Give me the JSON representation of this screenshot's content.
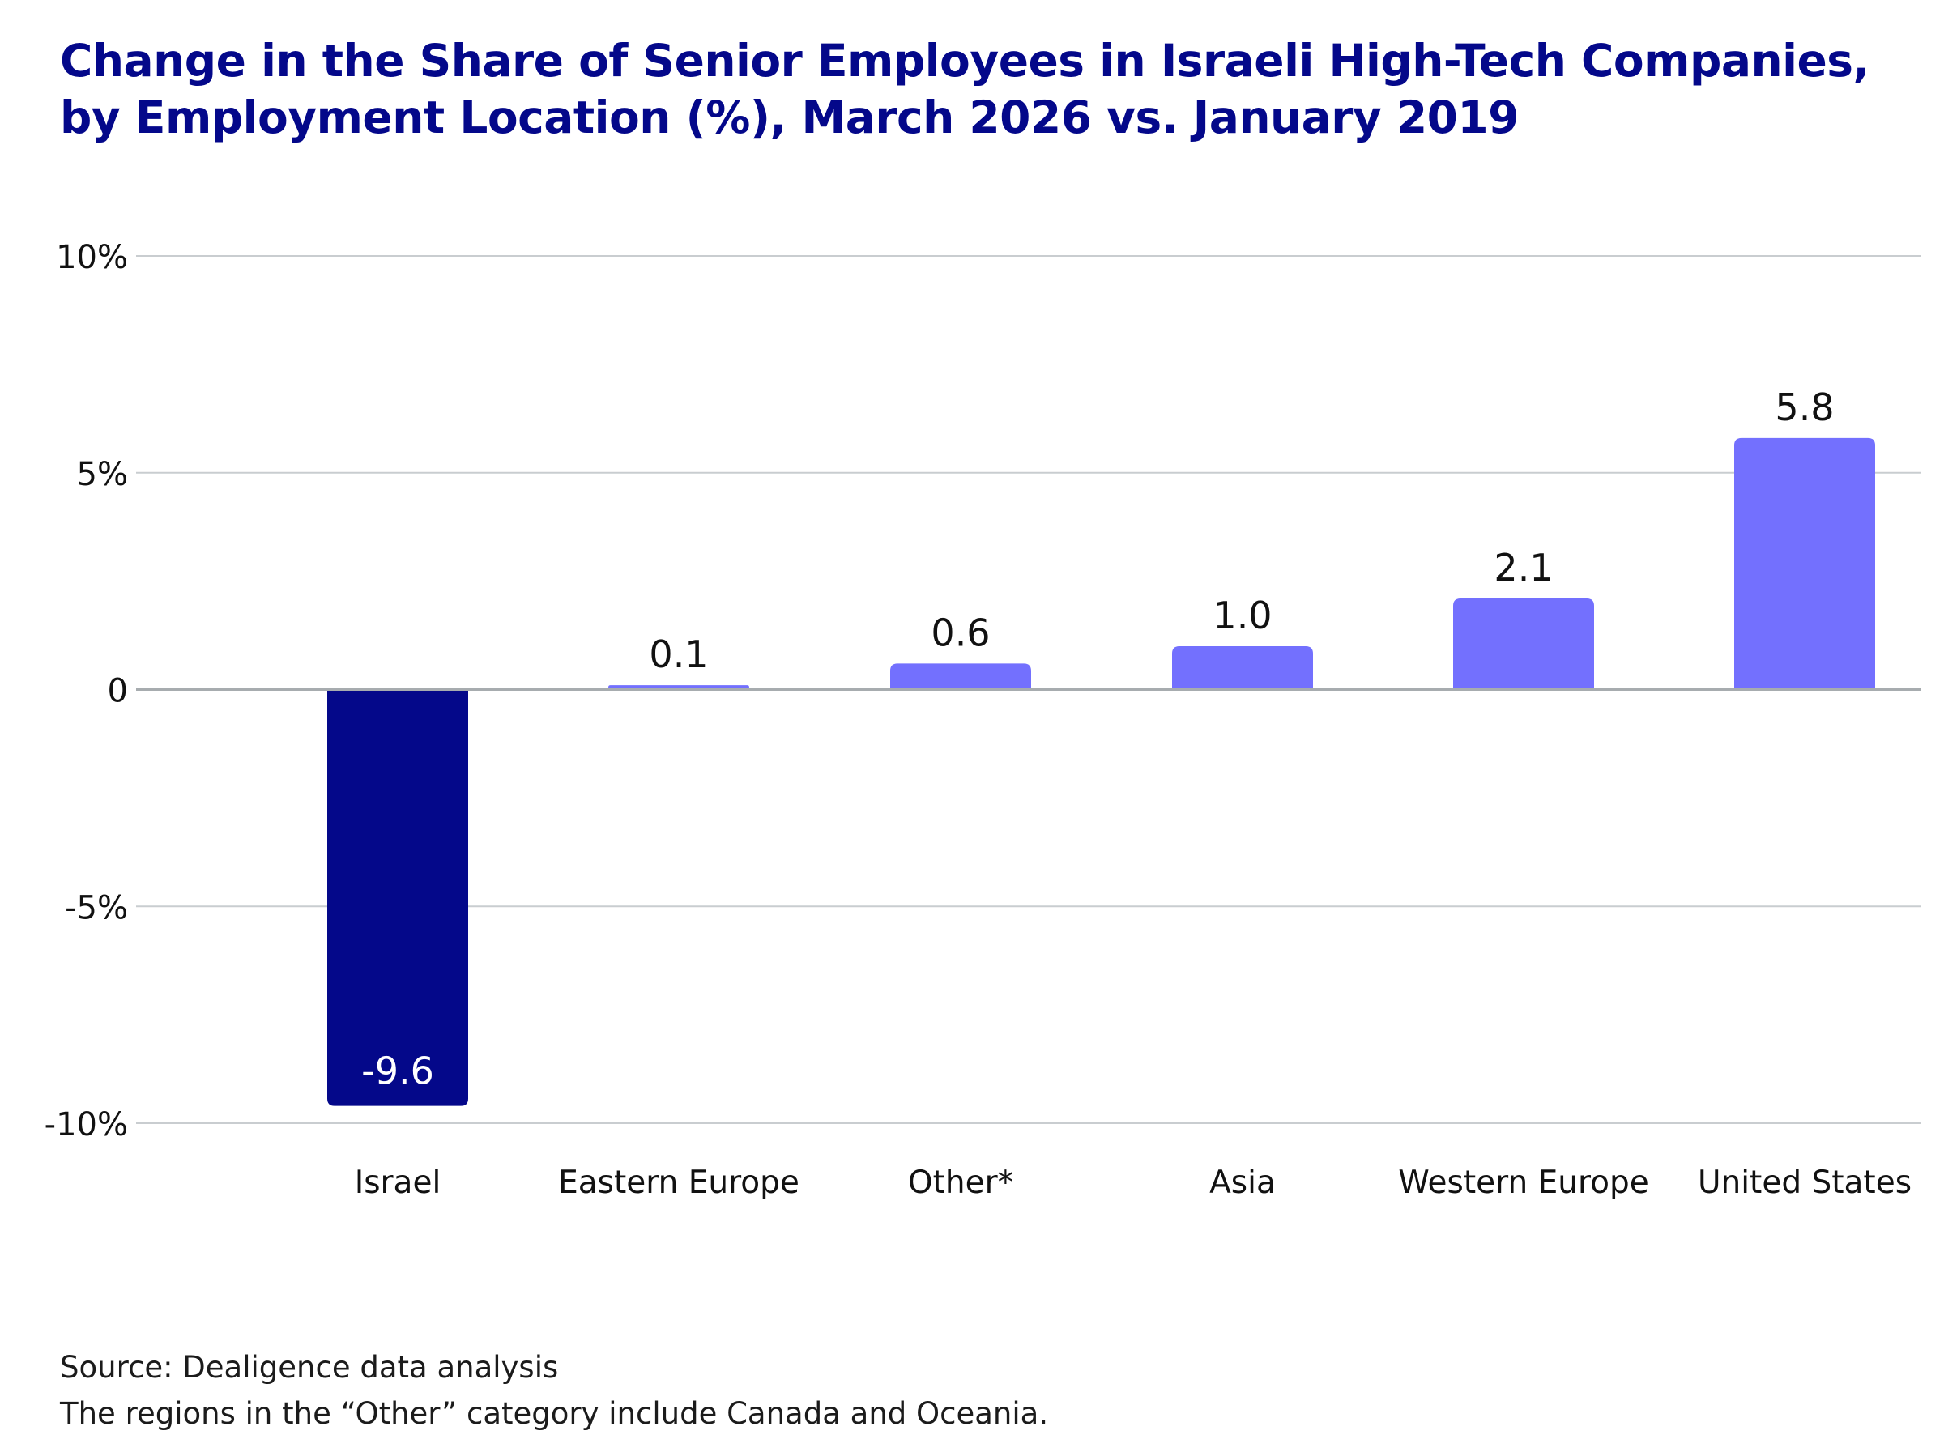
{
  "title_lines": [
    "Change in the Share of Senior Employees in Israeli High-Tech Companies,",
    "by Employment Location (%), March 2026 vs. January 2019"
  ],
  "source": "Source: Dealigence data analysis",
  "footnote": "The regions in the “Other” category include Canada and Oceania.",
  "colors": {
    "title": "#04088a",
    "negative_bar": "#04088a",
    "positive_bar": "#7370fe",
    "grid": "#c9cdd0",
    "zero_line": "#a7acaf",
    "text": "#111111"
  },
  "chart_data": {
    "type": "bar",
    "title": "Change in the Share of Senior Employees in Israeli High-Tech Companies, by Employment Location (%), March 2026 vs. January 2019",
    "categories": [
      "Israel",
      "Eastern Europe",
      "Other*",
      "Asia",
      "Western Europe",
      "United States"
    ],
    "values": [
      -9.6,
      0.1,
      0.6,
      1.0,
      2.1,
      5.8
    ],
    "value_labels": [
      "-9.6",
      "0.1",
      "0.6",
      "1.0",
      "2.1",
      "5.8"
    ],
    "ylim": [
      -10,
      10
    ],
    "yticks": [
      10,
      5,
      0,
      -5,
      -10
    ],
    "ytick_labels": [
      "10%",
      "5%",
      "0",
      "-5%",
      "-10%"
    ],
    "xlabel": "",
    "ylabel": "",
    "grid": true,
    "legend": "none"
  }
}
